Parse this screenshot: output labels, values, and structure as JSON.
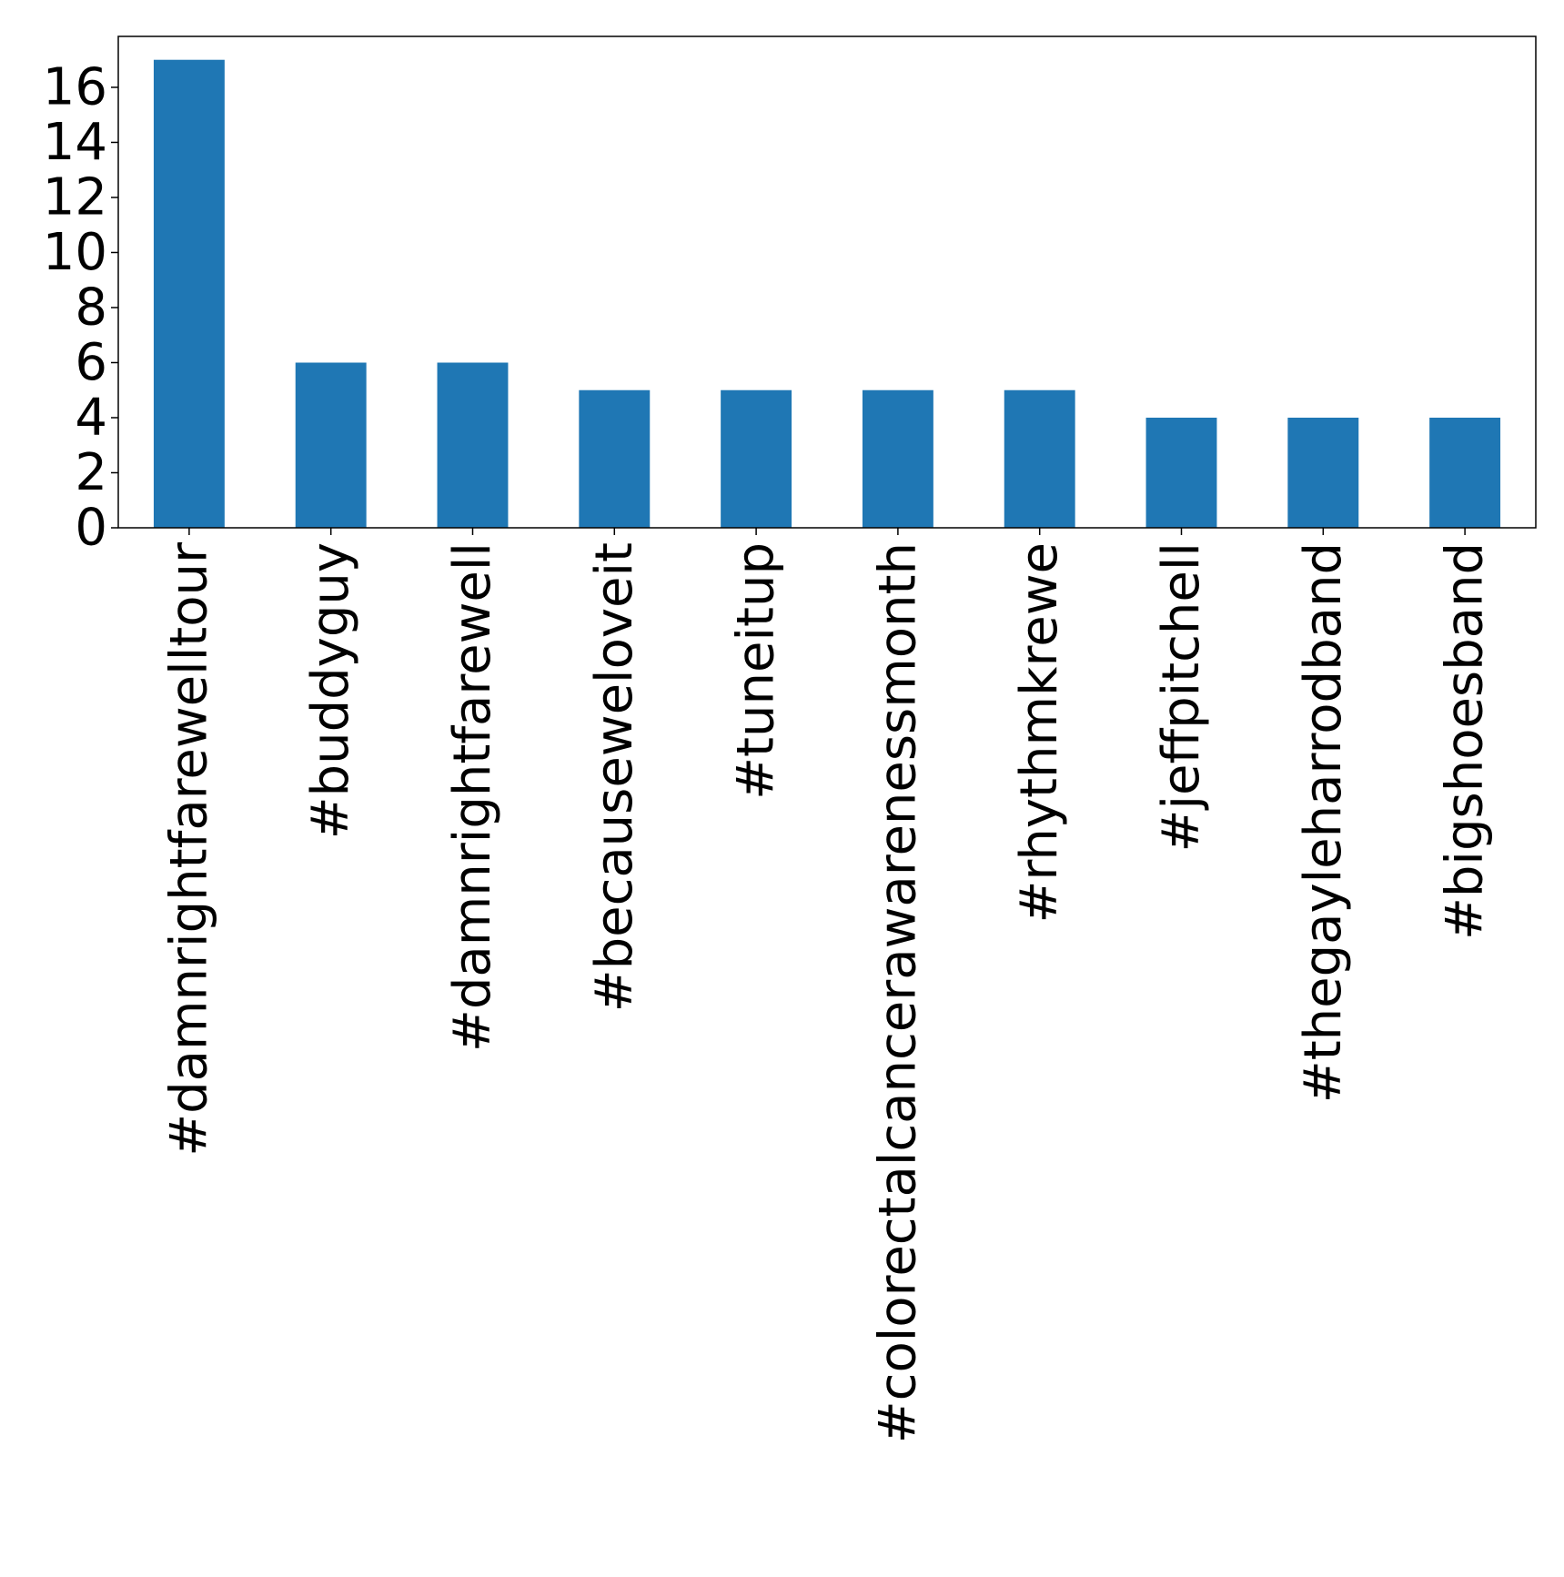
{
  "chart_data": {
    "type": "bar",
    "title": "",
    "xlabel": "",
    "ylabel": "",
    "categories": [
      "#damnrightfarewelltour",
      "#buddyguy",
      "#damnrightfarewell",
      "#becauseweloveit",
      "#tuneitup",
      "#colorectalcancerawarenessmonth",
      "#rhythmkrewe",
      "#jeffpitchell",
      "#thegayleharrodband",
      "#bigshoesband"
    ],
    "values": [
      17,
      6,
      6,
      5,
      5,
      5,
      5,
      4,
      4,
      4
    ],
    "ylim": [
      0,
      17.85
    ],
    "yticks": [
      0,
      2,
      4,
      6,
      8,
      10,
      12,
      14,
      16
    ],
    "bar_color": "#1f77b4",
    "grid": false,
    "legend": false
  }
}
